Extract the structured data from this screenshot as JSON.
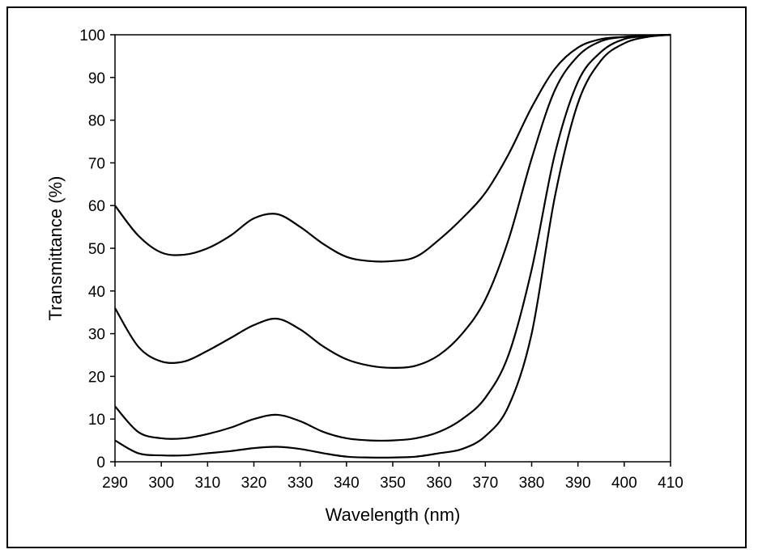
{
  "chart_data": {
    "type": "line",
    "xlabel": "Wavelength (nm)",
    "ylabel": "Transmittance (%)",
    "xlim": [
      290,
      410
    ],
    "ylim": [
      0,
      100
    ],
    "xticks": [
      290,
      300,
      310,
      320,
      330,
      340,
      350,
      360,
      370,
      380,
      390,
      400,
      410
    ],
    "yticks": [
      0,
      10,
      20,
      30,
      40,
      50,
      60,
      70,
      80,
      90,
      100
    ],
    "legend": "none",
    "grid": false,
    "line_color": "#000000",
    "series": [
      {
        "x": [
          290,
          295,
          300,
          305,
          310,
          315,
          320,
          325,
          330,
          335,
          340,
          345,
          350,
          355,
          360,
          365,
          370,
          375,
          380,
          385,
          390,
          395,
          400,
          405,
          410
        ],
        "values": [
          60,
          53,
          49,
          48.5,
          50,
          53,
          57,
          58,
          55,
          51,
          48,
          47,
          47,
          48,
          52,
          57,
          63,
          72,
          83,
          92,
          97,
          99,
          99.5,
          99.8,
          100
        ]
      },
      {
        "x": [
          290,
          295,
          300,
          305,
          310,
          315,
          320,
          325,
          330,
          335,
          340,
          345,
          350,
          355,
          360,
          365,
          370,
          375,
          380,
          385,
          390,
          395,
          400,
          405,
          410
        ],
        "values": [
          36,
          27,
          23.5,
          23.5,
          26,
          29,
          32,
          33.5,
          31,
          27,
          24,
          22.5,
          22,
          22.5,
          25,
          30,
          38,
          52,
          71,
          87,
          95,
          98.5,
          99.5,
          99.8,
          100
        ]
      },
      {
        "x": [
          290,
          295,
          300,
          305,
          310,
          315,
          320,
          325,
          330,
          335,
          340,
          345,
          350,
          355,
          360,
          365,
          370,
          375,
          380,
          385,
          390,
          395,
          400,
          405,
          410
        ],
        "values": [
          13,
          7,
          5.5,
          5.5,
          6.5,
          8,
          10,
          11,
          9.5,
          7,
          5.5,
          5,
          5,
          5.5,
          7,
          10,
          15,
          25,
          45,
          72,
          89,
          96,
          99,
          99.7,
          100
        ]
      },
      {
        "x": [
          290,
          295,
          300,
          305,
          310,
          315,
          320,
          325,
          330,
          335,
          340,
          345,
          350,
          355,
          360,
          365,
          370,
          375,
          380,
          385,
          390,
          395,
          400,
          405,
          410
        ],
        "values": [
          5,
          2,
          1.5,
          1.5,
          2,
          2.5,
          3.2,
          3.5,
          3,
          2,
          1.2,
          1,
          1,
          1.2,
          2,
          3,
          6,
          13,
          30,
          62,
          84,
          94,
          98,
          99.5,
          100
        ]
      }
    ]
  }
}
